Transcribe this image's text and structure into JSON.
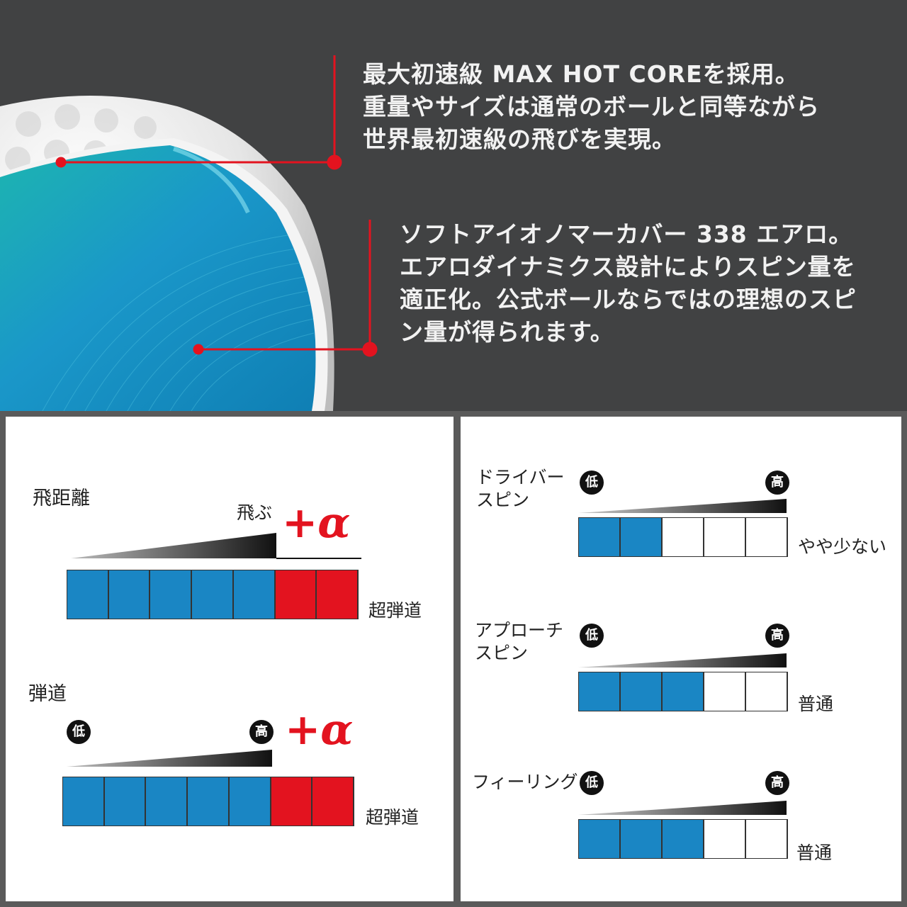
{
  "hero": {
    "callout_core": [
      "最大初速級 MAX HOT COREを採用。",
      "重量やサイズは通常のボールと同等ながら",
      "世界最初速級の飛びを実現。"
    ],
    "callout_cover": [
      "ソフトアイオノマーカバー 338 エアロ。",
      "エアロダイナミクス設計によりスピン量を",
      "適正化。公式ボールならではの理想のスピ",
      "ン量が得られます。"
    ],
    "accent_color": "#e3131f"
  },
  "left_panel": {
    "distance": {
      "title": "飛距離",
      "high_label": "飛ぶ",
      "plus": "+α",
      "result": "超弾道",
      "blue_cells": 5,
      "red_cells": 2
    },
    "trajectory": {
      "title": "弾道",
      "low_badge": "低",
      "high_badge": "高",
      "plus": "+α",
      "result": "超弾道",
      "blue_cells": 5,
      "red_cells": 2
    }
  },
  "right_panel": {
    "items": [
      {
        "title": [
          "ドライバー",
          "スピン"
        ],
        "low_badge": "低",
        "high_badge": "高",
        "level": 2,
        "of": 5,
        "result": "やや少ない"
      },
      {
        "title": [
          "アプローチ",
          "スピン"
        ],
        "low_badge": "低",
        "high_badge": "高",
        "level": 3,
        "of": 5,
        "result": "普通"
      },
      {
        "title": [
          "フィーリング"
        ],
        "low_badge": "低",
        "high_badge": "高",
        "level": 3,
        "of": 5,
        "result": "普通"
      }
    ]
  },
  "colors": {
    "blue": "#1a86c4",
    "red": "#e3131f",
    "dark_bg": "#414243"
  }
}
